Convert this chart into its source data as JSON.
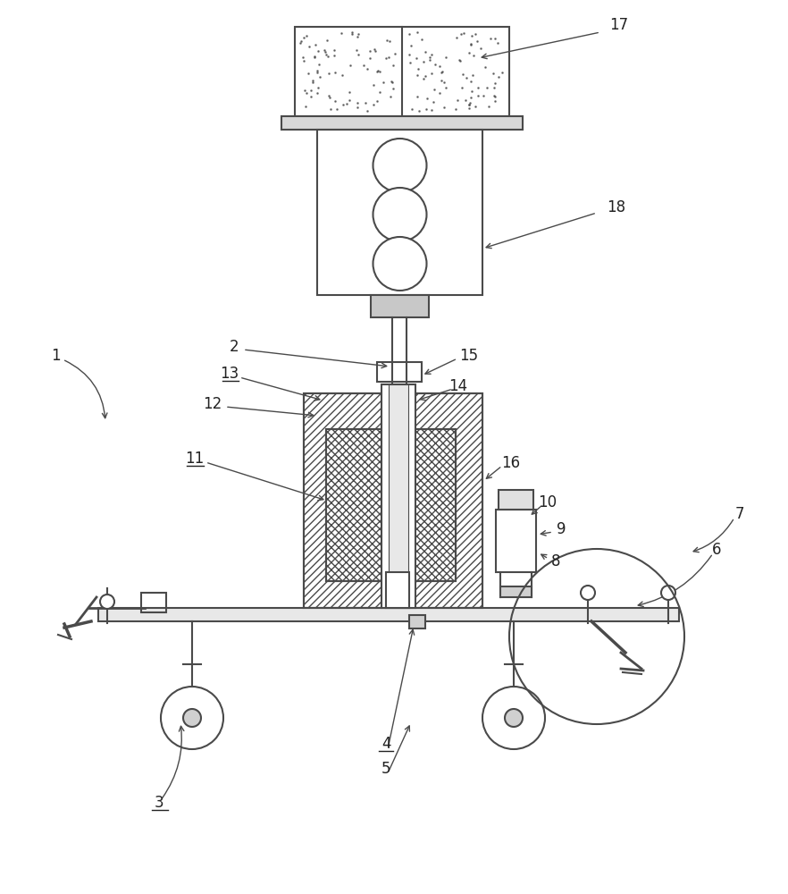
{
  "bg_color": "#ffffff",
  "line_color": "#4a4a4a",
  "line_width": 1.5
}
